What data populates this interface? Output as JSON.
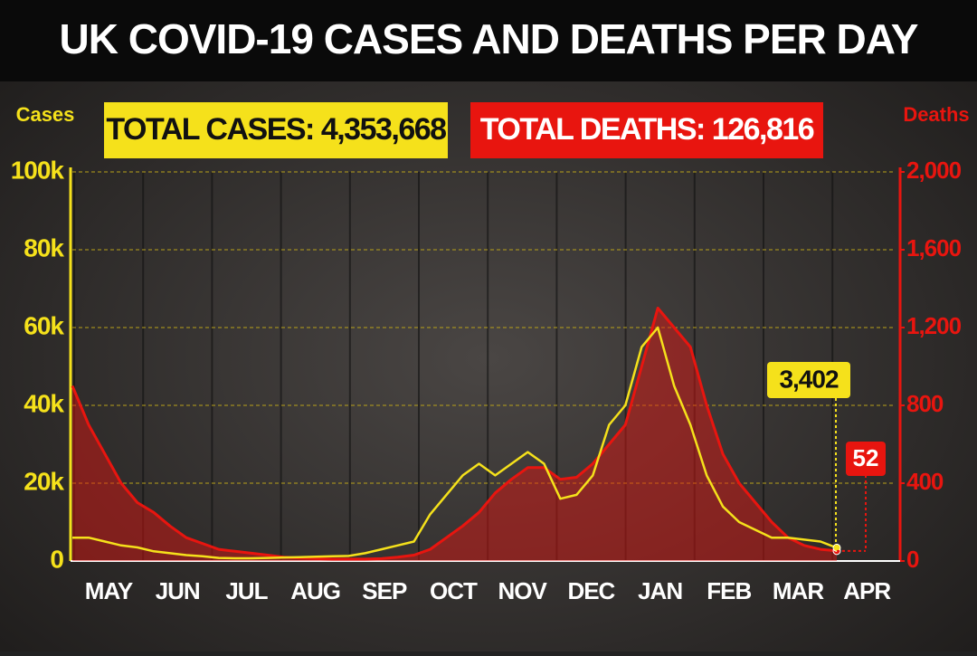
{
  "chart_data": {
    "type": "line",
    "title": "UK COVID-19 CASES AND DEATHS PER DAY",
    "annotations": [
      "TOTAL CASES: 4,353,668",
      "TOTAL DEATHS: 126,816"
    ],
    "months": [
      "MAY",
      "JUN",
      "JUL",
      "AUG",
      "SEP",
      "OCT",
      "NOV",
      "DEC",
      "JAN",
      "FEB",
      "MAR",
      "APR"
    ],
    "series": [
      {
        "name": "Cases",
        "color": "#f5e11b",
        "values": [
          6000,
          6000,
          5000,
          4000,
          3500,
          2500,
          2000,
          1500,
          1200,
          800,
          700,
          700,
          800,
          900,
          1000,
          1100,
          1200,
          1300,
          2000,
          3000,
          4000,
          5000,
          12000,
          17000,
          22000,
          25000,
          22000,
          25000,
          28000,
          25000,
          16000,
          17000,
          22000,
          35000,
          40000,
          55000,
          60000,
          45000,
          35000,
          22000,
          14000,
          10000,
          8000,
          6000,
          6000,
          5500,
          5000,
          3402
        ],
        "value_labels": [
          null,
          null,
          null,
          null,
          null,
          null,
          null,
          null,
          null,
          null,
          null,
          null,
          null,
          null,
          null,
          null,
          null,
          null,
          null,
          null,
          null,
          null,
          null,
          null,
          null,
          null,
          null,
          null,
          null,
          null,
          null,
          null,
          null,
          null,
          null,
          null,
          null,
          null,
          null,
          null,
          null,
          null,
          null,
          null,
          null,
          null,
          null,
          "3,402"
        ]
      },
      {
        "name": "Deaths",
        "color": "#e8150f",
        "axis": "y2",
        "values": [
          900,
          700,
          550,
          400,
          300,
          250,
          180,
          120,
          90,
          60,
          50,
          40,
          30,
          20,
          15,
          12,
          10,
          10,
          10,
          12,
          20,
          30,
          60,
          120,
          180,
          250,
          350,
          420,
          480,
          480,
          420,
          430,
          500,
          600,
          700,
          1000,
          1300,
          1200,
          1100,
          800,
          550,
          400,
          300,
          200,
          120,
          80,
          60,
          52
        ]
      }
    ],
    "ylim": [
      0,
      100000
    ],
    "yticks": [
      0,
      {
        "value": 20000,
        "label": "20k"
      },
      {
        "value": 40000,
        "label": "40k"
      },
      {
        "value": 60000,
        "label": "60k"
      },
      {
        "value": 80000,
        "label": "80k"
      },
      {
        "value": 100000,
        "label": "100k"
      }
    ],
    "y2lim": [
      0,
      2000
    ],
    "y2ticks": [
      0,
      400,
      800,
      {
        "value": 1200,
        "label": "1,200"
      },
      {
        "value": 1600,
        "label": "1,600"
      },
      {
        "value": 2000,
        "label": "2,000"
      }
    ],
    "grid": true
  }
}
